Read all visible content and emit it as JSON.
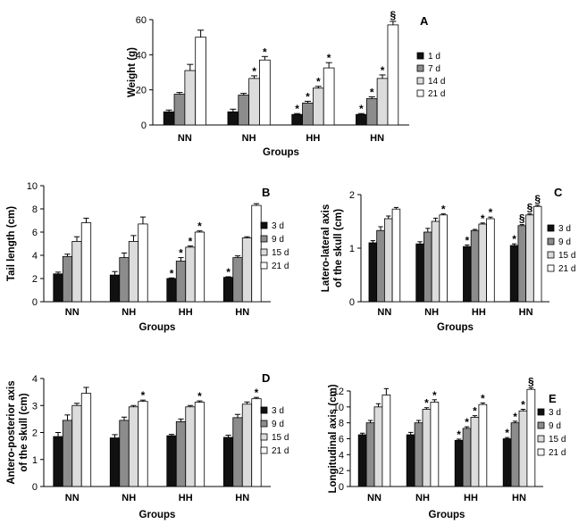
{
  "chart_data": [
    {
      "panel": "A",
      "type": "bar",
      "title": "",
      "xlabel": "Groups",
      "ylabel": "Weight (g)",
      "categories": [
        "NN",
        "NH",
        "HH",
        "HN"
      ],
      "ylim": [
        0,
        60
      ],
      "yticks": [
        0,
        20,
        40,
        60
      ],
      "legend_position": "right",
      "series": [
        {
          "name": "1 d",
          "color": "#111111",
          "values": [
            7.5,
            7.5,
            6.0,
            6.0
          ],
          "errors": [
            1.0,
            1.5,
            0.5,
            0.5
          ]
        },
        {
          "name": "7 d",
          "color": "#8c8c8c",
          "values": [
            17.5,
            17.0,
            12.5,
            15.0
          ],
          "errors": [
            1.0,
            1.0,
            1.0,
            1.0
          ]
        },
        {
          "name": "14 d",
          "color": "#dcdcdc",
          "values": [
            31.0,
            26.5,
            21.0,
            26.5
          ],
          "errors": [
            3.5,
            1.5,
            1.0,
            2.0
          ]
        },
        {
          "name": "21 d",
          "color": "#ffffff",
          "values": [
            50.0,
            37.0,
            32.5,
            57.0
          ],
          "errors": [
            4.0,
            2.0,
            3.0,
            2.0
          ]
        }
      ],
      "annotations": [
        {
          "category": "NH",
          "series": 2,
          "symbol": "*"
        },
        {
          "category": "NH",
          "series": 3,
          "symbol": "*"
        },
        {
          "category": "HH",
          "series": 0,
          "symbol": "*"
        },
        {
          "category": "HH",
          "series": 1,
          "symbol": "*"
        },
        {
          "category": "HH",
          "series": 2,
          "symbol": "*"
        },
        {
          "category": "HH",
          "series": 3,
          "symbol": "*"
        },
        {
          "category": "HN",
          "series": 0,
          "symbol": "*"
        },
        {
          "category": "HN",
          "series": 1,
          "symbol": "*"
        },
        {
          "category": "HN",
          "series": 2,
          "symbol": "*"
        },
        {
          "category": "HN",
          "series": 3,
          "symbol": "§"
        }
      ]
    },
    {
      "panel": "B",
      "type": "bar",
      "title": "",
      "xlabel": "Groups",
      "ylabel": "Tail length (cm)",
      "categories": [
        "NN",
        "NH",
        "HH",
        "HN"
      ],
      "ylim": [
        0,
        10
      ],
      "yticks": [
        0,
        2,
        4,
        6,
        8,
        10
      ],
      "legend_position": "right",
      "series": [
        {
          "name": "3 d",
          "color": "#111111",
          "values": [
            2.4,
            2.3,
            2.0,
            2.1
          ],
          "errors": [
            0.15,
            0.3,
            0.05,
            0.05
          ]
        },
        {
          "name": "9 d",
          "color": "#8c8c8c",
          "values": [
            3.9,
            3.8,
            3.5,
            3.8
          ],
          "errors": [
            0.2,
            0.4,
            0.3,
            0.15
          ]
        },
        {
          "name": "15 d",
          "color": "#dcdcdc",
          "values": [
            5.2,
            5.2,
            4.7,
            5.5
          ],
          "errors": [
            0.4,
            0.5,
            0.1,
            0.1
          ]
        },
        {
          "name": "21 d",
          "color": "#ffffff",
          "values": [
            6.8,
            6.7,
            6.0,
            8.3
          ],
          "errors": [
            0.4,
            0.6,
            0.1,
            0.15
          ]
        }
      ],
      "annotations": [
        {
          "category": "HH",
          "series": 0,
          "symbol": "*"
        },
        {
          "category": "HH",
          "series": 1,
          "symbol": "*"
        },
        {
          "category": "HH",
          "series": 2,
          "symbol": "*"
        },
        {
          "category": "HH",
          "series": 3,
          "symbol": "*"
        },
        {
          "category": "HN",
          "series": 0,
          "symbol": "*"
        }
      ]
    },
    {
      "panel": "C",
      "type": "bar",
      "title": "",
      "xlabel": "Groups",
      "ylabel": "Latero-lateral axis of the skull (cm)",
      "categories": [
        "NN",
        "NH",
        "HH",
        "HN"
      ],
      "ylim": [
        0,
        2
      ],
      "yticks": [
        0,
        1,
        2
      ],
      "legend_position": "right",
      "series": [
        {
          "name": "3 d",
          "color": "#111111",
          "values": [
            1.1,
            1.08,
            1.03,
            1.05
          ],
          "errors": [
            0.04,
            0.04,
            0.03,
            0.03
          ]
        },
        {
          "name": "9 d",
          "color": "#8c8c8c",
          "values": [
            1.33,
            1.3,
            1.33,
            1.42
          ],
          "errors": [
            0.07,
            0.07,
            0.02,
            0.02
          ]
        },
        {
          "name": "15 d",
          "color": "#dcdcdc",
          "values": [
            1.55,
            1.5,
            1.45,
            1.62
          ],
          "errors": [
            0.05,
            0.06,
            0.02,
            0.02
          ]
        },
        {
          "name": "21 d",
          "color": "#ffffff",
          "values": [
            1.73,
            1.62,
            1.55,
            1.78
          ],
          "errors": [
            0.03,
            0.02,
            0.03,
            0.02
          ]
        }
      ],
      "annotations": [
        {
          "category": "NH",
          "series": 3,
          "symbol": "*"
        },
        {
          "category": "HH",
          "series": 0,
          "symbol": "*"
        },
        {
          "category": "HH",
          "series": 2,
          "symbol": "*"
        },
        {
          "category": "HH",
          "series": 3,
          "symbol": "*"
        },
        {
          "category": "HN",
          "series": 0,
          "symbol": "*"
        },
        {
          "category": "HN",
          "series": 1,
          "symbol": "§"
        },
        {
          "category": "HN",
          "series": 2,
          "symbol": "§"
        },
        {
          "category": "HN",
          "series": 3,
          "symbol": "§"
        }
      ]
    },
    {
      "panel": "D",
      "type": "bar",
      "title": "",
      "xlabel": "Groups",
      "ylabel": "Antero-posterior axis of the skull (cm)",
      "categories": [
        "NN",
        "NH",
        "HH",
        "HN"
      ],
      "ylim": [
        0,
        4
      ],
      "yticks": [
        0,
        1,
        2,
        3,
        4
      ],
      "legend_position": "right",
      "series": [
        {
          "name": "3 d",
          "color": "#111111",
          "values": [
            1.85,
            1.8,
            1.88,
            1.82
          ],
          "errors": [
            0.15,
            0.12,
            0.05,
            0.08
          ]
        },
        {
          "name": "9 d",
          "color": "#8c8c8c",
          "values": [
            2.45,
            2.45,
            2.4,
            2.55
          ],
          "errors": [
            0.2,
            0.12,
            0.1,
            0.12
          ]
        },
        {
          "name": "15 d",
          "color": "#dcdcdc",
          "values": [
            3.0,
            2.95,
            2.95,
            3.05
          ],
          "errors": [
            0.08,
            0.05,
            0.05,
            0.08
          ]
        },
        {
          "name": "21 d",
          "color": "#ffffff",
          "values": [
            3.45,
            3.15,
            3.12,
            3.25
          ],
          "errors": [
            0.22,
            0.05,
            0.05,
            0.05
          ]
        }
      ],
      "annotations": [
        {
          "category": "NH",
          "series": 3,
          "symbol": "*"
        },
        {
          "category": "HH",
          "series": 3,
          "symbol": "*"
        },
        {
          "category": "HN",
          "series": 3,
          "symbol": "*"
        }
      ]
    },
    {
      "panel": "E",
      "type": "bar",
      "title": "",
      "xlabel": "Groups",
      "ylabel": "Longitudinal axis (cm)",
      "categories": [
        "NN",
        "NH",
        "HH",
        "HN"
      ],
      "ylim": [
        0,
        12
      ],
      "yticks": [
        0,
        2,
        4,
        6,
        8,
        10,
        12
      ],
      "legend_position": "right",
      "series": [
        {
          "name": "3 d",
          "color": "#111111",
          "values": [
            6.5,
            6.5,
            5.8,
            6.0
          ],
          "errors": [
            0.2,
            0.3,
            0.15,
            0.15
          ]
        },
        {
          "name": "9 d",
          "color": "#8c8c8c",
          "values": [
            8.0,
            8.0,
            7.3,
            8.0
          ],
          "errors": [
            0.3,
            0.3,
            0.2,
            0.2
          ]
        },
        {
          "name": "15 d",
          "color": "#dcdcdc",
          "values": [
            10.0,
            9.7,
            8.7,
            9.5
          ],
          "errors": [
            0.4,
            0.2,
            0.2,
            0.2
          ]
        },
        {
          "name": "21 d",
          "color": "#ffffff",
          "values": [
            11.5,
            10.6,
            10.3,
            12.2
          ],
          "errors": [
            0.8,
            0.3,
            0.2,
            0.2
          ]
        }
      ],
      "annotations": [
        {
          "category": "NH",
          "series": 2,
          "symbol": "*"
        },
        {
          "category": "NH",
          "series": 3,
          "symbol": "*"
        },
        {
          "category": "HH",
          "series": 0,
          "symbol": "*"
        },
        {
          "category": "HH",
          "series": 1,
          "symbol": "*"
        },
        {
          "category": "HH",
          "series": 2,
          "symbol": "*"
        },
        {
          "category": "HH",
          "series": 3,
          "symbol": "*"
        },
        {
          "category": "HN",
          "series": 0,
          "symbol": "*"
        },
        {
          "category": "HN",
          "series": 1,
          "symbol": "*"
        },
        {
          "category": "HN",
          "series": 2,
          "symbol": "*"
        },
        {
          "category": "HN",
          "series": 3,
          "symbol": "§"
        }
      ]
    }
  ]
}
